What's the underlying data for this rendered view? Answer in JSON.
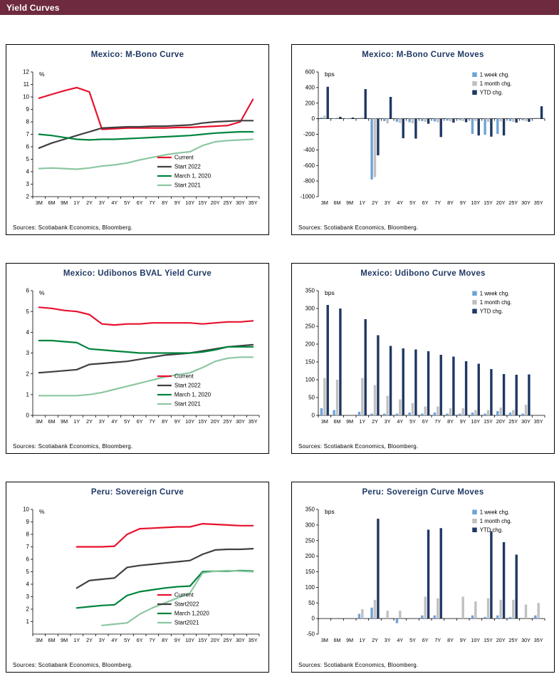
{
  "header": {
    "title": "Yield Curves",
    "bar_color": "#6e2b40"
  },
  "palette": {
    "title_navy": "#1f3864",
    "current_red": "#e8112d",
    "start2022_gray": "#404040",
    "march2020_green": "#00843d",
    "start2021_lightgreen": "#8cc7a2",
    "week_blue": "#6fa3d8",
    "month_gray": "#c0c0c0",
    "ytd_navy": "#1f3864"
  },
  "chart_data": [
    {
      "title": "Mexico: M-Bono Curve",
      "type": "line",
      "unit": "%",
      "sources": "Sources: Scotiabank Economics, Bloomberg.",
      "categories": [
        "3M",
        "6M",
        "9M",
        "1Y",
        "2Y",
        "3Y",
        "4Y",
        "5Y",
        "6Y",
        "7Y",
        "8Y",
        "9Y",
        "10Y",
        "15Y",
        "20Y",
        "25Y",
        "30Y",
        "35Y"
      ],
      "ylim": [
        2,
        12
      ],
      "yticks": {
        "start": 2,
        "end": 12,
        "step": 1
      },
      "legend_pos": [
        0.55,
        0.7
      ],
      "series": [
        {
          "name": "Current",
          "color": "#e8112d",
          "values": [
            9.9,
            10.2,
            10.5,
            10.75,
            10.4,
            7.4,
            7.45,
            7.5,
            7.5,
            7.5,
            7.5,
            7.55,
            7.55,
            7.6,
            7.65,
            7.7,
            8.0,
            9.8
          ]
        },
        {
          "name": "Start 2022",
          "color": "#404040",
          "values": [
            5.9,
            6.3,
            6.6,
            6.9,
            7.2,
            7.5,
            7.55,
            7.6,
            7.6,
            7.65,
            7.65,
            7.7,
            7.75,
            7.9,
            8.0,
            8.05,
            8.1,
            8.1
          ]
        },
        {
          "name": "March 1, 2020",
          "color": "#00843d",
          "values": [
            7.0,
            6.9,
            6.75,
            6.6,
            6.55,
            6.6,
            6.6,
            6.65,
            6.7,
            6.75,
            6.8,
            6.85,
            6.9,
            7.0,
            7.1,
            7.15,
            7.2,
            7.2
          ]
        },
        {
          "name": "Start 2021",
          "color": "#8cc7a2",
          "values": [
            4.25,
            4.3,
            4.25,
            4.2,
            4.3,
            4.45,
            4.55,
            4.7,
            4.95,
            5.15,
            5.35,
            5.5,
            5.6,
            6.1,
            6.4,
            6.5,
            6.55,
            6.6
          ]
        }
      ]
    },
    {
      "title": "Mexico: M-Bono Curve Moves",
      "type": "bar",
      "unit": "bps",
      "sources": "Sources: Scotiabank Economics, Bloomberg.",
      "categories": [
        "3M",
        "6M",
        "9M",
        "1Y",
        "2Y",
        "3Y",
        "4Y",
        "5Y",
        "6Y",
        "7Y",
        "8Y",
        "9Y",
        "10Y",
        "15Y",
        "20Y",
        "25Y",
        "30Y",
        "35Y"
      ],
      "ylim": [
        -1000,
        600
      ],
      "yticks": {
        "start": -1000,
        "end": 600,
        "step": 200
      },
      "legend_pos": [
        0.68,
        0.0
      ],
      "series": [
        {
          "name": "1 week chg.",
          "color": "#6fa3d8",
          "values": [
            15,
            5,
            5,
            10,
            -780,
            -30,
            -40,
            -45,
            -30,
            -35,
            -25,
            -20,
            -195,
            -205,
            -195,
            -30,
            -20,
            10
          ]
        },
        {
          "name": "1 month chg.",
          "color": "#c0c0c0",
          "values": [
            40,
            15,
            10,
            20,
            -750,
            -60,
            -55,
            -60,
            -40,
            -45,
            -35,
            -30,
            -30,
            -40,
            -35,
            -40,
            -30,
            15
          ]
        },
        {
          "name": "YTD chg.",
          "color": "#1f3864",
          "values": [
            410,
            25,
            15,
            380,
            -470,
            280,
            -250,
            -255,
            -65,
            -235,
            -50,
            -45,
            -215,
            -230,
            -215,
            -50,
            -40,
            160
          ]
        }
      ]
    },
    {
      "title": "Mexico: Udibonos BVAL Yield Curve",
      "type": "line",
      "unit": "%",
      "sources": "Sources: Scotiabank Economics, Bloomberg.",
      "categories": [
        "3M",
        "6M",
        "9M",
        "1Y",
        "2Y",
        "3Y",
        "4Y",
        "5Y",
        "6Y",
        "7Y",
        "8Y",
        "9Y",
        "10Y",
        "15Y",
        "20Y",
        "25Y",
        "30Y",
        "35Y"
      ],
      "ylim": [
        0,
        6
      ],
      "yticks": {
        "start": 0,
        "end": 6,
        "step": 1
      },
      "legend_pos": [
        0.55,
        0.7
      ],
      "series": [
        {
          "name": "Current",
          "color": "#e8112d",
          "values": [
            5.2,
            5.15,
            5.05,
            5.0,
            4.85,
            4.4,
            4.35,
            4.4,
            4.4,
            4.45,
            4.45,
            4.45,
            4.45,
            4.4,
            4.45,
            4.5,
            4.5,
            4.55
          ]
        },
        {
          "name": "Start 2022",
          "color": "#404040",
          "values": [
            2.05,
            2.1,
            2.15,
            2.2,
            2.45,
            2.5,
            2.55,
            2.6,
            2.7,
            2.8,
            2.9,
            2.95,
            3.0,
            3.1,
            3.2,
            3.3,
            3.35,
            3.4
          ]
        },
        {
          "name": "March 1, 2020",
          "color": "#00843d",
          "values": [
            3.6,
            3.6,
            3.55,
            3.5,
            3.2,
            3.15,
            3.1,
            3.05,
            3.0,
            3.0,
            3.0,
            3.0,
            3.0,
            3.05,
            3.15,
            3.3,
            3.3,
            3.3
          ]
        },
        {
          "name": "Start 2021",
          "color": "#8cc7a2",
          "values": [
            0.95,
            0.95,
            0.95,
            0.95,
            1.0,
            1.1,
            1.25,
            1.4,
            1.55,
            1.7,
            1.85,
            1.95,
            2.05,
            2.3,
            2.6,
            2.75,
            2.8,
            2.8
          ]
        }
      ]
    },
    {
      "title": "Mexico: Udibono Curve Moves",
      "type": "bar",
      "unit": "bps",
      "sources": "Sources: Scotiabank Economics, Bloomberg.",
      "categories": [
        "3M",
        "6M",
        "9M",
        "1Y",
        "2Y",
        "3Y",
        "4Y",
        "5Y",
        "6Y",
        "7Y",
        "8Y",
        "9Y",
        "10Y",
        "15Y",
        "20Y",
        "25Y",
        "30Y",
        "35Y"
      ],
      "ylim": [
        0,
        350
      ],
      "yticks": {
        "start": 0,
        "end": 350,
        "step": 50
      },
      "legend_pos": [
        0.68,
        0.0
      ],
      "series": [
        {
          "name": "1 week chg.",
          "color": "#6fa3d8",
          "values": [
            20,
            15,
            0,
            10,
            5,
            5,
            5,
            8,
            5,
            8,
            5,
            5,
            8,
            5,
            12,
            8,
            5,
            0
          ]
        },
        {
          "name": "1 month chg.",
          "color": "#c0c0c0",
          "values": [
            105,
            100,
            0,
            105,
            85,
            55,
            45,
            35,
            25,
            25,
            20,
            20,
            15,
            15,
            22,
            15,
            30,
            0
          ]
        },
        {
          "name": "YTD chg.",
          "color": "#1f3864",
          "values": [
            310,
            300,
            0,
            270,
            225,
            195,
            188,
            185,
            180,
            170,
            165,
            152,
            145,
            130,
            116,
            114,
            115,
            0
          ]
        }
      ]
    },
    {
      "title": "Peru: Sovereign Curve",
      "type": "line",
      "unit": "%",
      "sources": "Sources: Scotiabank Economics, Bloomberg.",
      "categories": [
        "3M",
        "6M",
        "9M",
        "1Y",
        "2Y",
        "3Y",
        "4Y",
        "5Y",
        "6Y",
        "7Y",
        "8Y",
        "9Y",
        "10Y",
        "15Y",
        "20Y",
        "25Y",
        "30Y",
        "35Y"
      ],
      "ylim": [
        0,
        10
      ],
      "yticks": {
        "start": 1,
        "end": 10,
        "step": 1
      },
      "legend_pos": [
        0.55,
        0.7
      ],
      "series": [
        {
          "name": "Current",
          "color": "#e8112d",
          "values": [
            null,
            null,
            null,
            7.0,
            7.0,
            7.0,
            7.05,
            8.0,
            8.45,
            8.5,
            8.55,
            8.6,
            8.6,
            8.85,
            8.8,
            8.75,
            8.7,
            8.7
          ]
        },
        {
          "name": "Start2022",
          "color": "#404040",
          "values": [
            null,
            null,
            null,
            3.7,
            4.3,
            4.4,
            4.5,
            5.35,
            5.5,
            5.6,
            5.7,
            5.8,
            5.9,
            6.4,
            6.75,
            6.8,
            6.8,
            6.85
          ]
        },
        {
          "name": "March 1,2020",
          "color": "#00843d",
          "values": [
            null,
            null,
            null,
            2.1,
            2.2,
            2.3,
            2.35,
            3.1,
            3.4,
            3.55,
            3.7,
            3.8,
            3.85,
            5.0,
            5.05,
            5.05,
            5.1,
            5.05
          ]
        },
        {
          "name": "Start2021",
          "color": "#8cc7a2",
          "values": [
            null,
            null,
            null,
            null,
            null,
            0.7,
            0.8,
            0.9,
            1.6,
            2.1,
            2.5,
            2.9,
            3.3,
            4.9,
            5.05,
            5.1,
            5.05,
            5.0
          ]
        }
      ]
    },
    {
      "title": "Peru: Sovereign Curve Moves",
      "type": "bar",
      "unit": "bps",
      "sources": "Sources: Scotiabank Economics, Bloomberg.",
      "categories": [
        "3M",
        "6M",
        "9M",
        "1Y",
        "2Y",
        "3Y",
        "4Y",
        "5Y",
        "6Y",
        "7Y",
        "8Y",
        "9Y",
        "10Y",
        "15Y",
        "20Y",
        "25Y",
        "30Y",
        "35Y"
      ],
      "ylim": [
        -50,
        350
      ],
      "yticks": {
        "start": -50,
        "end": 350,
        "step": 50
      },
      "legend_pos": [
        0.68,
        0.0
      ],
      "series": [
        {
          "name": "1 week chg.",
          "color": "#6fa3d8",
          "values": [
            0,
            0,
            0,
            15,
            35,
            0,
            -15,
            0,
            10,
            10,
            0,
            0,
            10,
            5,
            10,
            5,
            0,
            10
          ]
        },
        {
          "name": "1 month chg.",
          "color": "#c0c0c0",
          "values": [
            0,
            0,
            0,
            30,
            60,
            25,
            25,
            0,
            70,
            65,
            0,
            70,
            55,
            65,
            60,
            60,
            45,
            50
          ]
        },
        {
          "name": "YTD chg.",
          "color": "#1f3864",
          "values": [
            0,
            0,
            0,
            0,
            320,
            0,
            0,
            0,
            285,
            290,
            0,
            0,
            0,
            280,
            245,
            205,
            0,
            0
          ]
        }
      ]
    }
  ]
}
